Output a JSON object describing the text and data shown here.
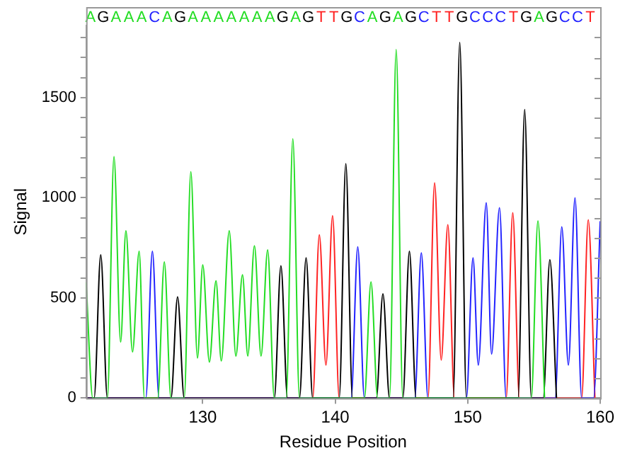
{
  "chart_data": {
    "type": "line",
    "xlabel": "Residue Position",
    "ylabel": "Signal",
    "xlim": [
      121.2,
      160
    ],
    "ylim": [
      0,
      1860
    ],
    "xticks": [
      130,
      140,
      150,
      160
    ],
    "yticks": [
      0,
      {
        "value": 100,
        "label": null
      },
      {
        "value": 200,
        "label": null
      },
      {
        "value": 300,
        "label": null
      },
      {
        "value": 400,
        "label": null
      },
      500,
      {
        "value": 600,
        "label": null
      },
      {
        "value": 700,
        "label": null
      },
      {
        "value": 800,
        "label": null
      },
      {
        "value": 900,
        "label": null
      },
      1000,
      {
        "value": 1100,
        "label": null
      },
      {
        "value": 1200,
        "label": null
      },
      {
        "value": 1300,
        "label": null
      },
      {
        "value": 1400,
        "label": null
      },
      1500,
      {
        "value": 1600,
        "label": null
      },
      {
        "value": 1700,
        "label": null
      },
      {
        "value": 1800,
        "label": null
      }
    ],
    "marker": "none",
    "line_style": "solid",
    "series": [
      {
        "color": "#22dd22",
        "x": [
          121.2,
          121.7,
          122.8,
          123.3,
          123.8,
          124.2,
          124.7,
          125.2,
          125.6,
          126.6,
          127.1,
          127.6,
          128.6,
          129.1,
          129.6,
          130.0,
          130.5,
          131.0,
          131.4,
          132.0,
          132.5,
          133.0,
          133.4,
          133.9,
          134.4,
          134.9,
          135.4,
          136.3,
          136.8,
          137.3,
          142.2,
          142.7,
          143.2,
          144.1,
          144.6,
          145.1,
          154.8,
          155.3,
          155.8
        ],
        "values": [
          575,
          0,
          0,
          1205,
          280,
          835,
          230,
          733,
          0,
          0,
          680,
          0,
          0,
          1130,
          200,
          665,
          180,
          585,
          185,
          835,
          210,
          615,
          210,
          760,
          210,
          740,
          0,
          0,
          1295,
          0,
          0,
          580,
          0,
          0,
          1740,
          0,
          0,
          885,
          0
        ]
      },
      {
        "color": "#000000",
        "x": [
          121.2,
          121.8,
          122.3,
          122.8,
          127.6,
          128.1,
          128.6,
          135.4,
          135.9,
          136.4,
          137.3,
          137.8,
          138.3,
          140.3,
          140.8,
          141.3,
          143.1,
          143.6,
          144.1,
          145.1,
          145.6,
          146.1,
          148.9,
          149.4,
          149.9,
          153.8,
          154.3,
          154.8,
          155.7,
          156.2,
          156.7
        ],
        "values": [
          0,
          0,
          715,
          0,
          0,
          505,
          0,
          0,
          660,
          0,
          0,
          700,
          0,
          0,
          1170,
          0,
          0,
          520,
          0,
          0,
          733,
          0,
          0,
          1775,
          0,
          0,
          1440,
          0,
          0,
          690,
          0
        ]
      },
      {
        "color": "#2222ff",
        "x": [
          121.2,
          125.7,
          126.2,
          126.7,
          141.2,
          141.7,
          142.2,
          146.0,
          146.5,
          147.0,
          149.9,
          150.4,
          150.8,
          151.4,
          151.8,
          152.4,
          152.9,
          156.6,
          157.1,
          157.6,
          158.1,
          158.6,
          159.5,
          160.0
        ],
        "values": [
          0,
          0,
          733,
          0,
          0,
          755,
          0,
          0,
          725,
          0,
          0,
          700,
          165,
          975,
          220,
          950,
          0,
          0,
          855,
          165,
          1000,
          0,
          0,
          880
        ]
      },
      {
        "color": "#ff2222",
        "x": [
          121.2,
          138.3,
          138.8,
          139.3,
          139.8,
          140.3,
          147.0,
          147.5,
          148.0,
          148.5,
          149.0,
          152.9,
          153.4,
          153.9,
          158.6,
          159.1,
          159.6
        ],
        "values": [
          0,
          0,
          815,
          165,
          910,
          0,
          0,
          1075,
          190,
          865,
          0,
          0,
          925,
          0,
          0,
          890,
          0
        ]
      }
    ],
    "annotations": [
      "A",
      "G",
      "A",
      "A",
      "A",
      "C",
      "A",
      "G",
      "A",
      "A",
      "A",
      "A",
      "A",
      "A",
      "A",
      "G",
      "A",
      "G",
      "T",
      "T",
      "G",
      "C",
      "A",
      "G",
      "A",
      "G",
      "C",
      "T",
      "T",
      "G",
      "C",
      "C",
      "C",
      "T",
      "G",
      "A",
      "G",
      "C",
      "C",
      "T"
    ]
  }
}
